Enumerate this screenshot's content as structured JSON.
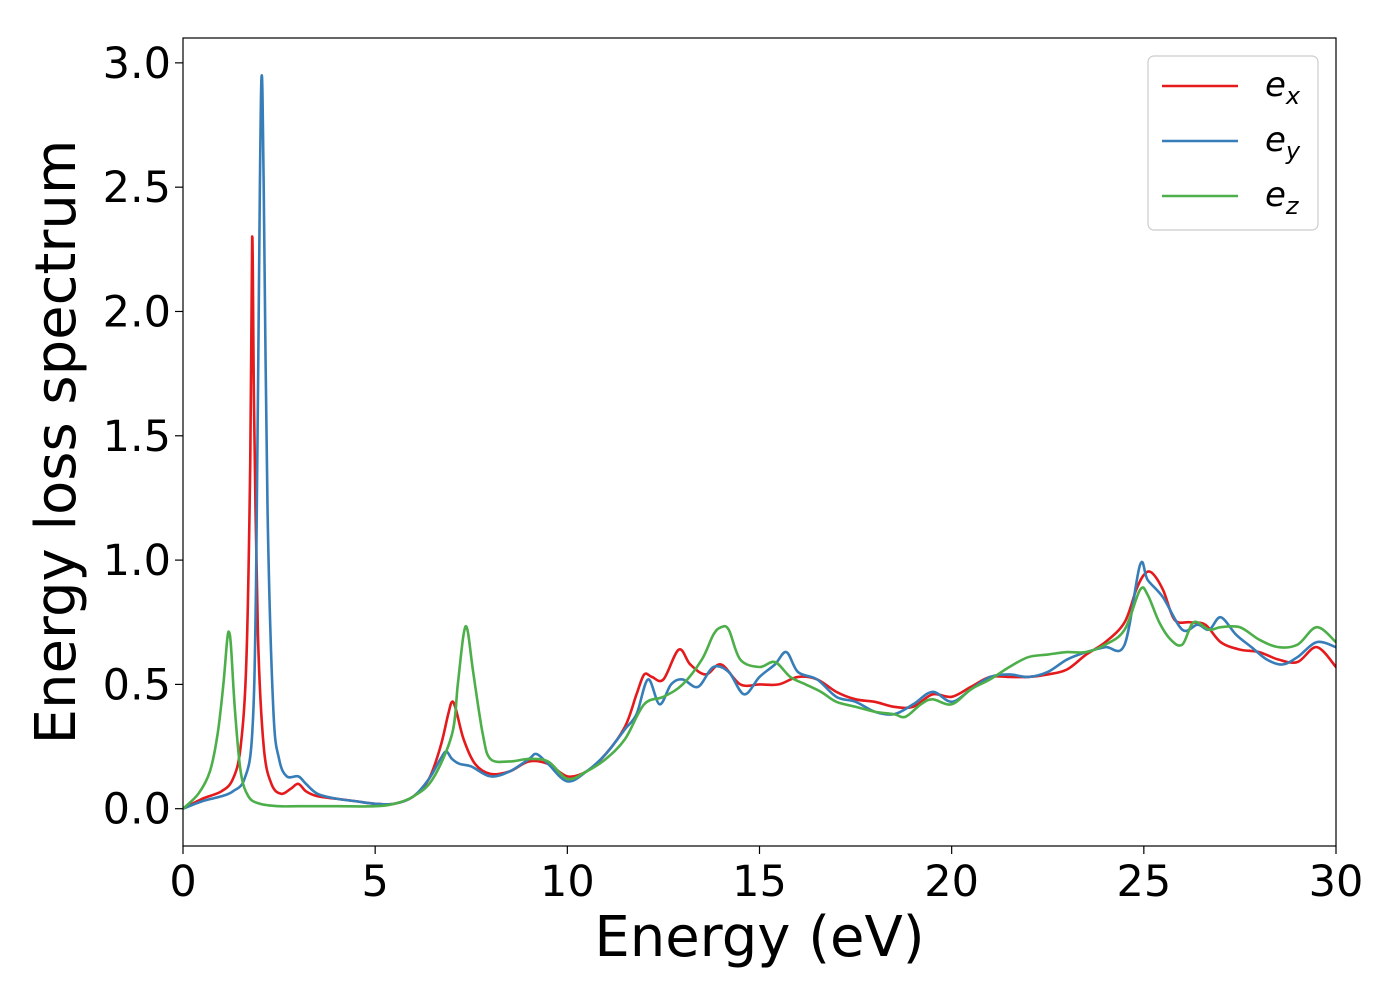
{
  "chart_data": {
    "type": "line",
    "xlabel": "Energy (eV)",
    "ylabel": "Energy loss spectrum",
    "xlim": [
      0,
      30
    ],
    "ylim": [
      -0.15,
      3.1
    ],
    "grid": false,
    "legend_position": "top-right",
    "x_ticks": [
      0,
      5,
      10,
      15,
      20,
      25,
      30
    ],
    "x_tick_labels": [
      "0",
      "5",
      "10",
      "15",
      "20",
      "25",
      "30"
    ],
    "y_ticks": [
      0.0,
      0.5,
      1.0,
      1.5,
      2.0,
      2.5,
      3.0
    ],
    "y_tick_labels": [
      "0.0",
      "0.5",
      "1.0",
      "1.5",
      "2.0",
      "2.5",
      "3.0"
    ],
    "series": [
      {
        "name": "e",
        "subscript": "x",
        "color": "#e41a1c",
        "x": [
          0,
          0.5,
          1.0,
          1.3,
          1.5,
          1.65,
          1.75,
          1.8,
          1.85,
          1.95,
          2.1,
          2.3,
          2.55,
          2.8,
          3.0,
          3.2,
          3.5,
          4.0,
          4.5,
          5.0,
          5.5,
          6.0,
          6.4,
          6.7,
          6.9,
          7.0,
          7.1,
          7.3,
          7.6,
          8.0,
          8.5,
          9.0,
          9.5,
          10.0,
          10.5,
          11.0,
          11.5,
          11.8,
          12.0,
          12.2,
          12.5,
          12.9,
          13.2,
          13.6,
          14.0,
          14.5,
          15.0,
          15.5,
          16.0,
          16.5,
          17.0,
          17.5,
          18.0,
          18.5,
          19.0,
          19.5,
          20.0,
          20.5,
          21.0,
          21.5,
          22.0,
          22.5,
          23.0,
          23.5,
          24.0,
          24.5,
          24.8,
          25.0,
          25.2,
          25.5,
          25.8,
          26.2,
          26.6,
          27.0,
          27.5,
          28.0,
          28.5,
          29.0,
          29.5,
          30.0
        ],
        "y": [
          0.0,
          0.04,
          0.07,
          0.12,
          0.25,
          0.6,
          1.4,
          2.3,
          1.6,
          0.7,
          0.25,
          0.1,
          0.06,
          0.08,
          0.1,
          0.07,
          0.05,
          0.04,
          0.03,
          0.02,
          0.02,
          0.05,
          0.12,
          0.25,
          0.38,
          0.43,
          0.4,
          0.28,
          0.18,
          0.14,
          0.15,
          0.19,
          0.18,
          0.13,
          0.15,
          0.22,
          0.33,
          0.46,
          0.54,
          0.53,
          0.52,
          0.64,
          0.58,
          0.54,
          0.58,
          0.5,
          0.5,
          0.5,
          0.53,
          0.52,
          0.47,
          0.44,
          0.43,
          0.41,
          0.41,
          0.46,
          0.45,
          0.49,
          0.53,
          0.53,
          0.53,
          0.54,
          0.56,
          0.62,
          0.67,
          0.75,
          0.88,
          0.94,
          0.95,
          0.88,
          0.76,
          0.75,
          0.74,
          0.67,
          0.64,
          0.63,
          0.6,
          0.59,
          0.65,
          0.57
        ]
      },
      {
        "name": "e",
        "subscript": "y",
        "color": "#377eb8",
        "x": [
          0,
          0.5,
          1.0,
          1.3,
          1.6,
          1.8,
          1.9,
          2.0,
          2.05,
          2.1,
          2.2,
          2.35,
          2.5,
          2.7,
          3.0,
          3.2,
          3.5,
          4.0,
          4.5,
          5.0,
          5.5,
          6.0,
          6.4,
          6.7,
          6.85,
          7.0,
          7.2,
          7.5,
          8.0,
          8.5,
          9.0,
          9.2,
          9.5,
          10.0,
          10.5,
          11.0,
          11.5,
          11.8,
          12.1,
          12.4,
          12.7,
          13.0,
          13.4,
          13.8,
          14.2,
          14.6,
          15.0,
          15.4,
          15.7,
          16.0,
          16.5,
          17.0,
          17.5,
          18.0,
          18.5,
          19.0,
          19.5,
          20.0,
          20.5,
          21.0,
          21.5,
          22.0,
          22.5,
          23.0,
          23.5,
          24.0,
          24.5,
          24.9,
          25.1,
          25.5,
          26.0,
          26.4,
          26.7,
          27.0,
          27.4,
          27.8,
          28.2,
          28.6,
          29.0,
          29.5,
          30.0
        ],
        "y": [
          0.0,
          0.03,
          0.05,
          0.07,
          0.12,
          0.3,
          0.9,
          2.5,
          2.95,
          2.5,
          1.2,
          0.4,
          0.2,
          0.13,
          0.13,
          0.1,
          0.06,
          0.04,
          0.03,
          0.02,
          0.02,
          0.05,
          0.12,
          0.2,
          0.23,
          0.2,
          0.18,
          0.17,
          0.13,
          0.15,
          0.2,
          0.22,
          0.18,
          0.11,
          0.15,
          0.22,
          0.32,
          0.38,
          0.52,
          0.42,
          0.5,
          0.52,
          0.49,
          0.57,
          0.55,
          0.46,
          0.53,
          0.58,
          0.63,
          0.55,
          0.52,
          0.45,
          0.43,
          0.39,
          0.38,
          0.42,
          0.47,
          0.43,
          0.48,
          0.53,
          0.54,
          0.53,
          0.55,
          0.6,
          0.63,
          0.65,
          0.66,
          0.98,
          0.92,
          0.85,
          0.72,
          0.74,
          0.72,
          0.77,
          0.7,
          0.65,
          0.6,
          0.58,
          0.61,
          0.67,
          0.65
        ]
      },
      {
        "name": "e",
        "subscript": "z",
        "color": "#4daf4a",
        "x": [
          0,
          0.4,
          0.7,
          0.9,
          1.05,
          1.15,
          1.2,
          1.25,
          1.35,
          1.5,
          1.7,
          2.0,
          2.5,
          3.0,
          4.0,
          5.0,
          5.5,
          6.0,
          6.5,
          7.0,
          7.15,
          7.3,
          7.4,
          7.55,
          7.8,
          8.0,
          8.5,
          9.0,
          9.5,
          10.0,
          10.5,
          11.0,
          11.5,
          12.0,
          12.5,
          13.0,
          13.5,
          13.8,
          14.0,
          14.2,
          14.5,
          15.0,
          15.4,
          15.8,
          16.2,
          16.6,
          17.0,
          17.5,
          18.0,
          18.5,
          18.8,
          19.2,
          19.5,
          20.0,
          20.5,
          21.0,
          21.5,
          22.0,
          22.5,
          23.0,
          23.5,
          24.0,
          24.5,
          24.9,
          25.1,
          25.4,
          25.7,
          26.0,
          26.3,
          26.7,
          27.0,
          27.5,
          28.0,
          28.5,
          29.0,
          29.5,
          30.0
        ],
        "y": [
          0.0,
          0.06,
          0.15,
          0.3,
          0.5,
          0.68,
          0.71,
          0.65,
          0.4,
          0.15,
          0.05,
          0.02,
          0.01,
          0.01,
          0.01,
          0.01,
          0.02,
          0.05,
          0.12,
          0.3,
          0.5,
          0.7,
          0.72,
          0.55,
          0.3,
          0.2,
          0.19,
          0.2,
          0.19,
          0.12,
          0.15,
          0.2,
          0.28,
          0.42,
          0.45,
          0.5,
          0.6,
          0.7,
          0.73,
          0.72,
          0.6,
          0.57,
          0.59,
          0.53,
          0.5,
          0.47,
          0.43,
          0.41,
          0.39,
          0.38,
          0.37,
          0.42,
          0.44,
          0.42,
          0.48,
          0.52,
          0.57,
          0.61,
          0.62,
          0.63,
          0.63,
          0.66,
          0.72,
          0.88,
          0.86,
          0.75,
          0.68,
          0.66,
          0.75,
          0.72,
          0.73,
          0.73,
          0.68,
          0.65,
          0.66,
          0.73,
          0.67
        ]
      }
    ]
  }
}
